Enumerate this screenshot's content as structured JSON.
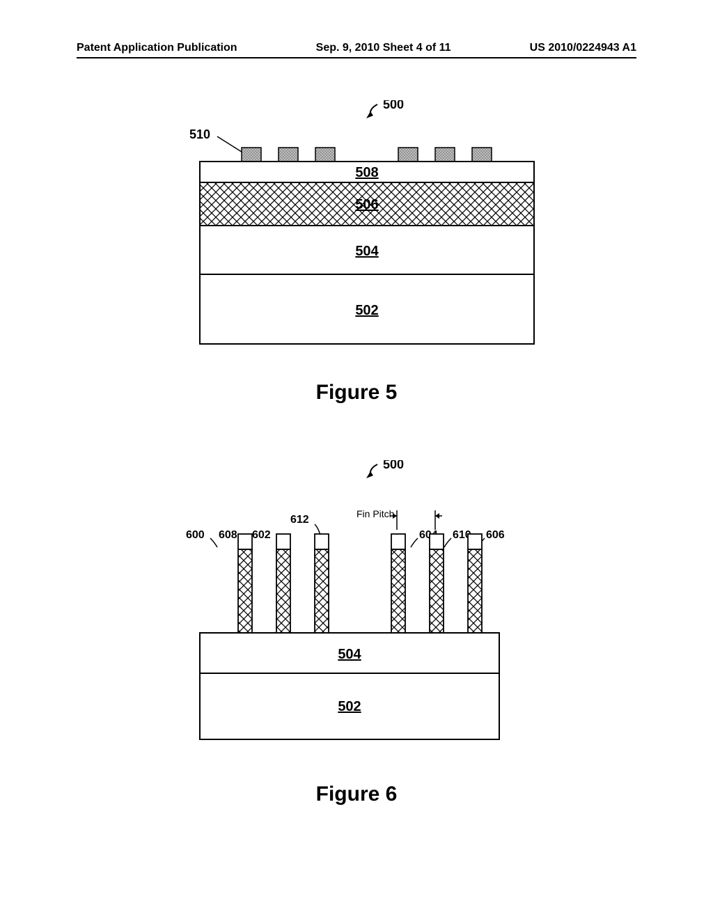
{
  "header": {
    "left": "Patent Application Publication",
    "center": "Sep. 9, 2010   Sheet 4 of 11",
    "right": "US 2010/0224943 A1"
  },
  "fig5": {
    "caption": "Figure 5",
    "ref_main": "500",
    "ref_510": "510",
    "layers": {
      "l508": "508",
      "l506": "506",
      "l504": "504",
      "l502": "502"
    },
    "hatch_color": "#000000",
    "mask_fill": "#9e9e9e"
  },
  "fig6": {
    "caption": "Figure 6",
    "ref_main": "500",
    "fin_pitch_label": "Fin Pitch",
    "layers": {
      "l504": "504",
      "l502": "502"
    },
    "labels": {
      "r600": "600",
      "r608": "608",
      "r602": "602",
      "r612": "612",
      "r604": "604",
      "r610": "610",
      "r606": "606"
    },
    "fins": {
      "positions_x": [
        40,
        95,
        150,
        260,
        315,
        370
      ],
      "fin_width": 20,
      "fin_height": 120,
      "cap_height": 22
    },
    "hatch_color": "#000000"
  }
}
